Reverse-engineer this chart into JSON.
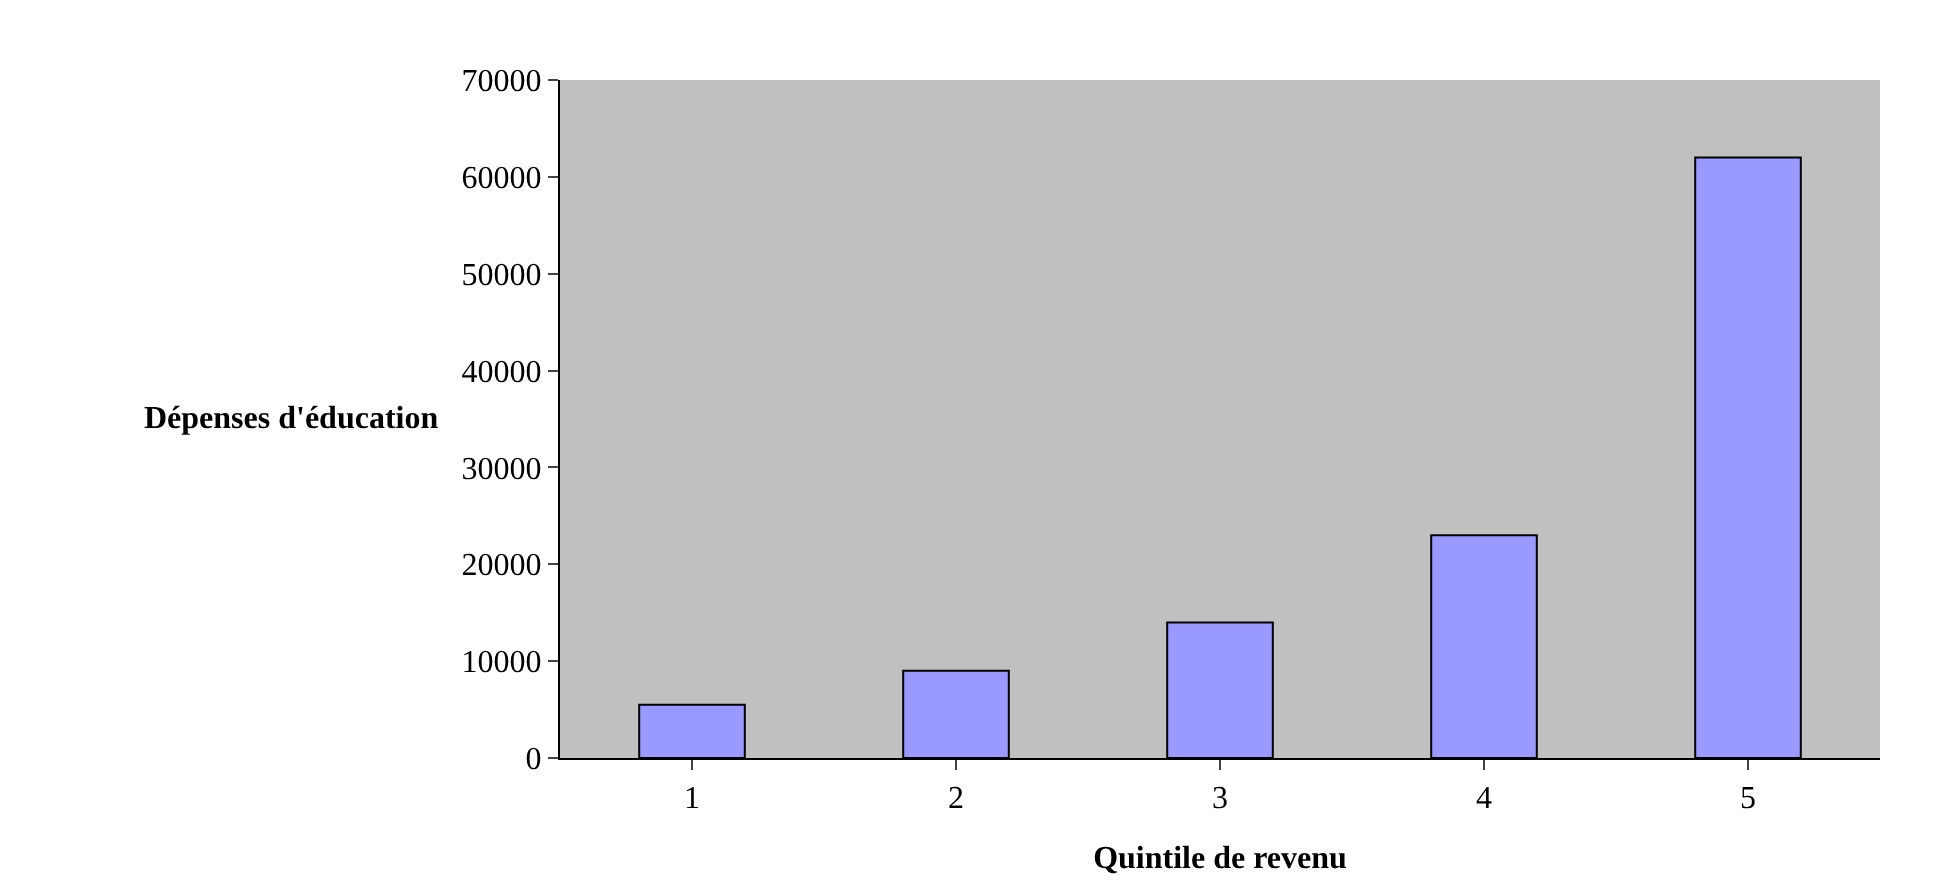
{
  "chart_data": {
    "type": "bar",
    "xlabel": "Quintile de revenu",
    "ylabel": "Dépenses d'éducation",
    "categories": [
      "1",
      "2",
      "3",
      "4",
      "5"
    ],
    "values": [
      5500,
      9000,
      14000,
      23000,
      62000
    ],
    "color": "#9999ff",
    "ylim": [
      0,
      70000
    ],
    "yticks": [
      0,
      10000,
      20000,
      30000,
      40000,
      50000,
      60000,
      70000
    ],
    "grid": false
  }
}
